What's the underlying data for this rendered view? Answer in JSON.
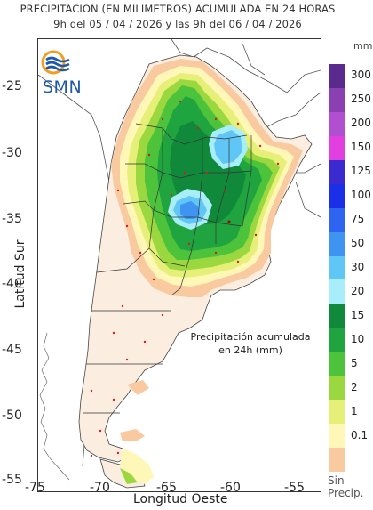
{
  "header": {
    "title_line1": "PRECIPITACION (EN MILIMETROS) ACUMULADA EN 24 HORAS",
    "title_line2": "9h del 05 / 04 / 2026  y las 9h del 06 / 04 / 2026"
  },
  "logo": {
    "text": "SMN",
    "icon": "smn-logo-icon"
  },
  "axes": {
    "ylabel": "Latitud Sur",
    "xlabel": "Longitud Oeste",
    "yticks": [
      "-25",
      "-30",
      "-35",
      "-40",
      "-45",
      "-50",
      "-55"
    ],
    "xticks": [
      "-75",
      "-70",
      "-65",
      "-60",
      "-55"
    ],
    "lon_range": [
      -75,
      -53
    ],
    "lat_range": [
      -55,
      -21.5
    ]
  },
  "annotation": {
    "line1": "Precipitación acumulada",
    "line2": "en 24h (mm)"
  },
  "legend": {
    "unit": "mm",
    "no_precip_line1": "Sin",
    "no_precip_line2": "Precip.",
    "bins": [
      {
        "label": "300",
        "color": "#5a2a8e"
      },
      {
        "label": "250",
        "color": "#8a3fb3"
      },
      {
        "label": "200",
        "color": "#b04fd0"
      },
      {
        "label": "150",
        "color": "#e23fe0"
      },
      {
        "label": "125",
        "color": "#3a2bd0"
      },
      {
        "label": "100",
        "color": "#1c2fe8"
      },
      {
        "label": "75",
        "color": "#2e64f0"
      },
      {
        "label": "50",
        "color": "#3f94f2"
      },
      {
        "label": "30",
        "color": "#5fc6f5"
      },
      {
        "label": "20",
        "color": "#a8eefa"
      },
      {
        "label": "15",
        "color": "#108a3a"
      },
      {
        "label": "10",
        "color": "#1fa43f"
      },
      {
        "label": "5",
        "color": "#4dc33c"
      },
      {
        "label": "2",
        "color": "#9bd840"
      },
      {
        "label": "1",
        "color": "#e6f078"
      },
      {
        "label": "0.1",
        "color": "#fff7b8"
      },
      {
        "label": "",
        "color": "#f9c9a0"
      }
    ]
  },
  "colors": {
    "no_precip": "#f9c9a0",
    "trace": "#fff7b8",
    "frame": "#333333",
    "station_dot": "#cc2222"
  }
}
